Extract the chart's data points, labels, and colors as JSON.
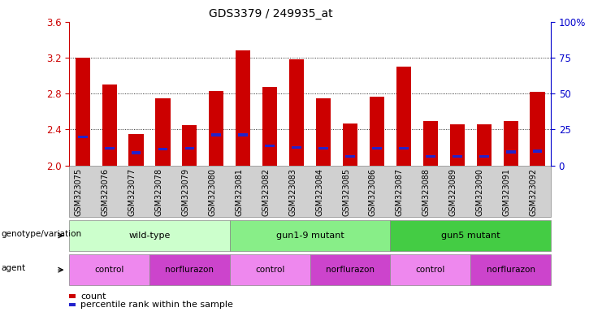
{
  "title": "GDS3379 / 249935_at",
  "samples": [
    "GSM323075",
    "GSM323076",
    "GSM323077",
    "GSM323078",
    "GSM323079",
    "GSM323080",
    "GSM323081",
    "GSM323082",
    "GSM323083",
    "GSM323084",
    "GSM323085",
    "GSM323086",
    "GSM323087",
    "GSM323088",
    "GSM323089",
    "GSM323090",
    "GSM323091",
    "GSM323092"
  ],
  "count_values": [
    3.2,
    2.9,
    2.35,
    2.75,
    2.45,
    2.83,
    3.28,
    2.87,
    3.18,
    2.75,
    2.47,
    2.77,
    3.1,
    2.49,
    2.46,
    2.46,
    2.49,
    2.82
  ],
  "percentile_values": [
    2.32,
    2.19,
    2.14,
    2.18,
    2.19,
    2.34,
    2.34,
    2.22,
    2.2,
    2.19,
    2.1,
    2.19,
    2.19,
    2.1,
    2.1,
    2.1,
    2.15,
    2.16
  ],
  "ymin": 2.0,
  "ymax": 3.6,
  "yticks_left": [
    2.0,
    2.4,
    2.8,
    3.2,
    3.6
  ],
  "yticks_right_labels": [
    "0",
    "25",
    "50",
    "75",
    "100%"
  ],
  "bar_color": "#cc0000",
  "pct_color": "#2222cc",
  "bar_bottom": 2.0,
  "genotype_groups": [
    {
      "label": "wild-type",
      "start": 0,
      "end": 6,
      "color": "#ccffcc"
    },
    {
      "label": "gun1-9 mutant",
      "start": 6,
      "end": 12,
      "color": "#88ee88"
    },
    {
      "label": "gun5 mutant",
      "start": 12,
      "end": 18,
      "color": "#44cc44"
    }
  ],
  "agent_groups": [
    {
      "label": "control",
      "start": 0,
      "end": 3,
      "color": "#ee88ee"
    },
    {
      "label": "norflurazon",
      "start": 3,
      "end": 6,
      "color": "#cc44cc"
    },
    {
      "label": "control",
      "start": 6,
      "end": 9,
      "color": "#ee88ee"
    },
    {
      "label": "norflurazon",
      "start": 9,
      "end": 12,
      "color": "#cc44cc"
    },
    {
      "label": "control",
      "start": 12,
      "end": 15,
      "color": "#ee88ee"
    },
    {
      "label": "norflurazon",
      "start": 15,
      "end": 18,
      "color": "#cc44cc"
    }
  ],
  "xlabel_fontsize": 7,
  "title_fontsize": 10,
  "tick_label_color_left": "#cc0000",
  "tick_label_color_right": "#0000cc",
  "legend_count_label": "count",
  "legend_pct_label": "percentile rank within the sample",
  "genotype_label": "genotype/variation",
  "agent_label": "agent",
  "bg_color": "#d0d0d0"
}
